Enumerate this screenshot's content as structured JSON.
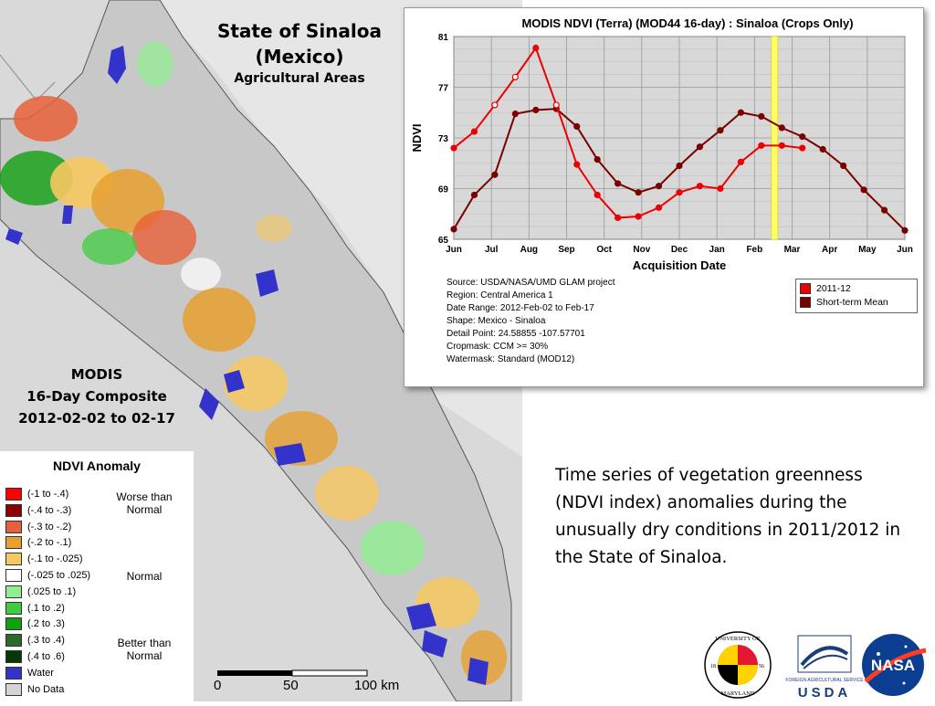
{
  "map": {
    "title_line1": "State of Sinaloa",
    "title_line2": "(Mexico)",
    "subtitle": "Agricultural Areas",
    "composite_line1": "MODIS",
    "composite_line2": "16-Day Composite",
    "composite_line3": "2012-02-02 to 02-17",
    "scale": {
      "label0": "0",
      "label50": "50",
      "label100": "100 km"
    }
  },
  "legend": {
    "title": "NDVI Anomaly",
    "items": [
      {
        "label": "(-1 to -.4)",
        "color": "#ff0000"
      },
      {
        "label": "(-.4 to -.3)",
        "color": "#8b0000"
      },
      {
        "label": "(-.3 to -.2)",
        "color": "#e8603a"
      },
      {
        "label": "(-.2 to -.1)",
        "color": "#e8a030"
      },
      {
        "label": "(-.1 to -.025)",
        "color": "#f7c860"
      },
      {
        "label": "(-.025 to .025)",
        "color": "#ffffff"
      },
      {
        "label": "(.025 to .1)",
        "color": "#90ee90"
      },
      {
        "label": "(.1 to .2)",
        "color": "#40cc40"
      },
      {
        "label": "(.2 to .3)",
        "color": "#10a010"
      },
      {
        "label": "(.3 to .4)",
        "color": "#2a6a2a"
      },
      {
        "label": "(.4 to .6)",
        "color": "#063806"
      },
      {
        "label": "Water",
        "color": "#3333cc"
      },
      {
        "label": "No Data",
        "color": "#d4d4d4"
      }
    ],
    "groups": {
      "worse": "Worse than Normal",
      "normal": "Normal",
      "better": "Better than Normal"
    }
  },
  "chart_data": {
    "type": "line",
    "title": "MODIS NDVI (Terra) (MOD44 16-day) : Sinaloa (Crops Only)",
    "xlabel": "Acquisition Date",
    "ylabel": "NDVI",
    "x_ticks": [
      "Jun",
      "Jul",
      "Aug",
      "Sep",
      "Oct",
      "Nov",
      "Dec",
      "Jan",
      "Feb",
      "Mar",
      "Apr",
      "May",
      "Jun"
    ],
    "y_ticks": [
      65,
      69,
      73,
      77,
      81
    ],
    "ylim": [
      65,
      81
    ],
    "grid": true,
    "highlight_period": "2012-02-02 to 2012-02-17",
    "series": [
      {
        "name": "2011-12",
        "color": "#ee0000",
        "values": [
          72.2,
          73.5,
          75.6,
          77.8,
          80.1,
          75.6,
          70.9,
          68.5,
          66.7,
          66.8,
          67.5,
          68.7,
          69.2,
          69.0,
          71.1,
          72.4,
          72.4,
          72.2
        ]
      },
      {
        "name": "Short-term Mean",
        "color": "#7a0000",
        "values": [
          65.8,
          68.5,
          70.1,
          74.9,
          75.2,
          75.3,
          73.9,
          71.3,
          69.4,
          68.7,
          69.2,
          70.8,
          72.3,
          73.6,
          75.0,
          74.7,
          73.8,
          73.1,
          72.1,
          70.8,
          68.9,
          67.3,
          65.7
        ]
      }
    ],
    "info": [
      "Source: USDA/NASA/UMD GLAM project",
      "Region: Central America 1",
      "Date Range: 2012-Feb-02 to Feb-17",
      "Shape: Mexico - Sinaloa",
      "Detail Point: 24.58855 -107.57701",
      "Cropmask: CCM >= 30%",
      "Watermask: Standard (MOD12)"
    ]
  },
  "caption": "Time series of vegetation greenness (NDVI index) anomalies during the unusually dry conditions in 2011/2012 in the State of Sinaloa.",
  "logos": {
    "umd_top": "UNIVERSITY OF",
    "umd_bottom": "MARYLAND",
    "umd_year1": "18",
    "umd_year2": "56",
    "usda": "USDA",
    "usda_small": "FOREIGN AGRICULTURAL SERVICE",
    "nasa": "NASA"
  }
}
